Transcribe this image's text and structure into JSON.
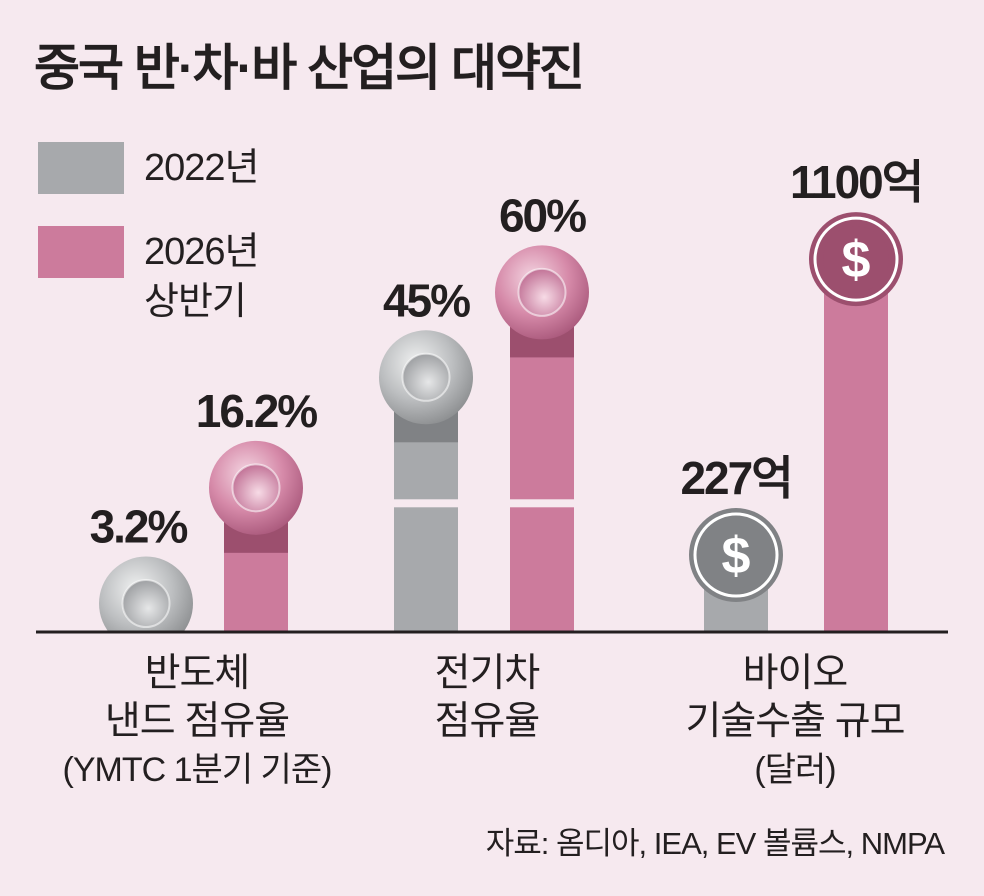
{
  "title": "중국 반·차·바 산업의 대약진",
  "legend": [
    {
      "label": "2022년",
      "sublabel": "",
      "color": "#a7a9ac"
    },
    {
      "label": "2026년",
      "sublabel": "상반기",
      "color": "#cc7b9c"
    }
  ],
  "colors": {
    "gray": "#a7a9ac",
    "gray_dark": "#808285",
    "pink": "#cc7b9c",
    "pink_dark": "#9c4f6e",
    "background": "#f6e9ef",
    "baseline": "#231f20"
  },
  "icons": {
    "share_marker": "coin-icon",
    "money_marker": "dollar-coin-icon"
  },
  "source": "자료: 옴디아, IEA, EV 볼륨스, NMPA",
  "chart_data": {
    "type": "bar",
    "title": "중국 반·차·바 산업의 대약진",
    "categories": [
      {
        "line1": "반도체",
        "line2": "낸드 점유율",
        "line3": "(YMTC 1분기 기준)"
      },
      {
        "line1": "전기차",
        "line2": "점유율",
        "line3": ""
      },
      {
        "line1": "바이오",
        "line2": "기술수출 규모",
        "line3": "(달러)"
      }
    ],
    "series": [
      {
        "name": "2022년",
        "values": [
          3.2,
          45,
          227
        ],
        "labels": [
          "3.2%",
          "45%",
          "227억"
        ]
      },
      {
        "name": "2026년 상반기",
        "values": [
          16.2,
          60,
          1100
        ],
        "labels": [
          "16.2%",
          "60%",
          "1100억"
        ]
      }
    ],
    "units": [
      "%",
      "%",
      "억 달러"
    ],
    "grid": false,
    "legend_position": "top-left"
  }
}
